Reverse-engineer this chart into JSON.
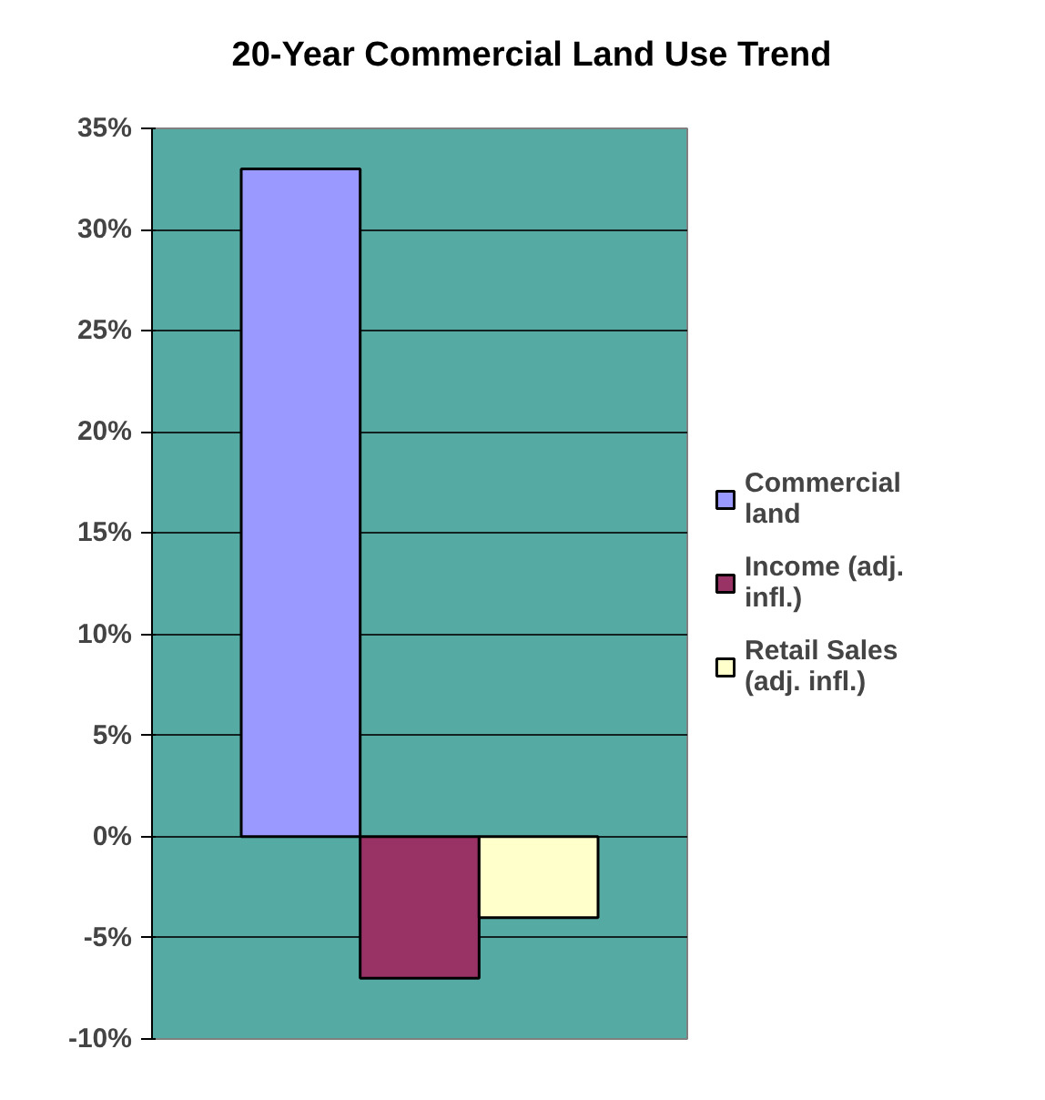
{
  "chart_data": {
    "type": "bar",
    "title": "20-Year Commercial Land Use Trend",
    "categories": [
      null
    ],
    "series": [
      {
        "name": "Commercial land",
        "color": "#9999ff",
        "values": [
          33
        ]
      },
      {
        "name": "Income (adj. infl.)",
        "color": "#993366",
        "values": [
          -7
        ]
      },
      {
        "name": "Retail Sales (adj. infl.)",
        "color": "#ffffcc",
        "values": [
          -4
        ]
      }
    ],
    "ylim": [
      -10,
      35
    ],
    "yticks": [
      {
        "value": -10,
        "label": "-10%"
      },
      {
        "value": -5,
        "label": "-5%"
      },
      {
        "value": 0,
        "label": "0%"
      },
      {
        "value": 5,
        "label": "5%"
      },
      {
        "value": 10,
        "label": "10%"
      },
      {
        "value": 15,
        "label": "15%"
      },
      {
        "value": 20,
        "label": "20%"
      },
      {
        "value": 25,
        "label": "25%"
      },
      {
        "value": 30,
        "label": "30%"
      },
      {
        "value": 35,
        "label": "35%"
      }
    ],
    "grid": "y",
    "legend": "right"
  }
}
